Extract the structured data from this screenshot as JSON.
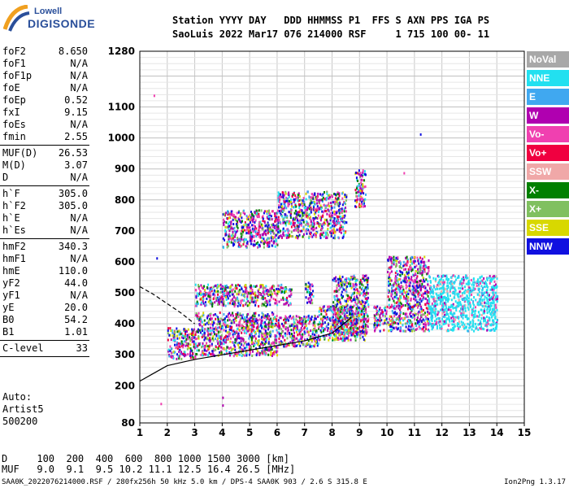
{
  "logo": {
    "line1": "Lowell",
    "line2": "DIGISONDE"
  },
  "header": {
    "row1": "Station YYYY DAY   DDD HHMMSS P1  FFS S AXN PPS IGA PS",
    "row2": "SaoLuis 2022 Mar17 076 214000 RSF     1 715 100 00- 11"
  },
  "params": [
    {
      "name": "foF2",
      "value": "8.650"
    },
    {
      "name": "foF1",
      "value": "N/A"
    },
    {
      "name": "foF1p",
      "value": "N/A"
    },
    {
      "name": "foE",
      "value": "N/A"
    },
    {
      "name": "foEp",
      "value": "0.52"
    },
    {
      "name": "fxI",
      "value": "9.15"
    },
    {
      "name": "foEs",
      "value": "N/A"
    },
    {
      "name": "fmin",
      "value": "2.55"
    },
    {
      "sep": true
    },
    {
      "name": "MUF(D)",
      "value": "26.53"
    },
    {
      "name": "M(D)",
      "value": "3.07"
    },
    {
      "name": "D",
      "value": "N/A"
    },
    {
      "sep": true
    },
    {
      "name": "h`F",
      "value": "305.0"
    },
    {
      "name": "h`F2",
      "value": "305.0"
    },
    {
      "name": "h`E",
      "value": "N/A"
    },
    {
      "name": "h`Es",
      "value": "N/A"
    },
    {
      "sep": true
    },
    {
      "name": "hmF2",
      "value": "340.3"
    },
    {
      "name": "hmF1",
      "value": "N/A"
    },
    {
      "name": "hmE",
      "value": "110.0"
    },
    {
      "name": "yF2",
      "value": "44.0"
    },
    {
      "name": "yF1",
      "value": "N/A"
    },
    {
      "name": "yE",
      "value": "20.0"
    },
    {
      "name": "B0",
      "value": "54.2"
    },
    {
      "name": "B1",
      "value": "1.01"
    },
    {
      "sep": true
    },
    {
      "name": "C-level",
      "value": "33"
    },
    {
      "sep": true
    }
  ],
  "auto": {
    "line1": "Auto:",
    "line2": "Artist5",
    "line3": "500200"
  },
  "footer": {
    "row1": "D     100  200  400  600  800 1000 1500 3000 [km]",
    "row2": "MUF   9.0  9.1  9.5 10.2 11.1 12.5 16.4 26.5 [MHz]",
    "row3": "SAA0K_2022076214000.RSF / 280fx256h 50 kHz 5.0 km / DPS-4 SAA0K 903 / 2.6 S 315.8 E",
    "version": "Ion2Png 1.3.17"
  },
  "legend": [
    {
      "label": "NoVal",
      "color": "#a8a8a8"
    },
    {
      "label": "NNE",
      "color": "#22e0f0"
    },
    {
      "label": "E",
      "color": "#40a8f0"
    },
    {
      "label": "W",
      "color": "#b000b0"
    },
    {
      "label": "Vo-",
      "color": "#f040b0"
    },
    {
      "label": "Vo+",
      "color": "#f00040"
    },
    {
      "label": "SSW",
      "color": "#f0a8a8"
    },
    {
      "label": "X-",
      "color": "#008000"
    },
    {
      "label": "X+",
      "color": "#80c060"
    },
    {
      "label": "SSE",
      "color": "#d8d800"
    },
    {
      "label": "NNW",
      "color": "#1010e0"
    }
  ],
  "chart_data": {
    "type": "scatter",
    "xlim": [
      1,
      15
    ],
    "ylim": [
      80,
      1280
    ],
    "x_ticks": [
      1,
      2,
      3,
      4,
      5,
      6,
      7,
      8,
      9,
      10,
      11,
      12,
      13,
      14,
      15
    ],
    "y_ticks": [
      80,
      200,
      300,
      400,
      500,
      600,
      700,
      800,
      900,
      1000,
      1100,
      1280
    ],
    "grid": true,
    "series": [
      {
        "name": "F-layer lower trace",
        "clusters": [
          {
            "x": [
              2.0,
              3.0
            ],
            "y": [
              290,
              390
            ]
          },
          {
            "x": [
              3.0,
              6.0
            ],
            "y": [
              300,
              440
            ]
          },
          {
            "x": [
              6.0,
              7.5
            ],
            "y": [
              330,
              430
            ]
          },
          {
            "x": [
              7.5,
              9.2
            ],
            "y": [
              350,
              460
            ]
          },
          {
            "x": [
              3.0,
              6.5
            ],
            "y": [
              460,
              530
            ]
          },
          {
            "x": [
              7.0,
              7.3
            ],
            "y": [
              470,
              540
            ]
          }
        ]
      },
      {
        "name": "F-layer spread",
        "clusters": [
          {
            "x": [
              10.0,
              11.5
            ],
            "y": [
              380,
              620
            ]
          },
          {
            "x": [
              9.5,
              10.0
            ],
            "y": [
              380,
              460
            ]
          },
          {
            "x": [
              8.0,
              9.3
            ],
            "y": [
              370,
              560
            ]
          }
        ]
      },
      {
        "name": "NNE high-frequency band",
        "clusters": [
          {
            "x": [
              11.5,
              14.0
            ],
            "y": [
              380,
              560
            ]
          }
        ]
      },
      {
        "name": "second-hop trace",
        "clusters": [
          {
            "x": [
              4.0,
              6.0
            ],
            "y": [
              650,
              770
            ]
          },
          {
            "x": [
              6.0,
              8.5
            ],
            "y": [
              680,
              830
            ]
          },
          {
            "x": [
              8.8,
              9.2
            ],
            "y": [
              780,
              900
            ]
          }
        ]
      },
      {
        "name": "scattered points",
        "points": [
          {
            "x": 1.5,
            "y": 1140
          },
          {
            "x": 1.6,
            "y": 615
          },
          {
            "x": 4.0,
            "y": 140
          },
          {
            "x": 4.0,
            "y": 165
          },
          {
            "x": 1.75,
            "y": 145
          },
          {
            "x": 11.2,
            "y": 1015
          },
          {
            "x": 10.6,
            "y": 890
          }
        ]
      }
    ],
    "model_curve": {
      "x": [
        1.0,
        1.5,
        2.0,
        3.0,
        4.0,
        5.0,
        6.0,
        7.0,
        8.0,
        8.7
      ],
      "y": [
        215,
        240,
        265,
        285,
        300,
        315,
        330,
        345,
        370,
        420
      ]
    },
    "upper_dashed_curve": {
      "x": [
        1.0,
        1.5,
        2.0,
        2.5,
        3.0
      ],
      "y": [
        520,
        495,
        465,
        435,
        400
      ]
    }
  }
}
